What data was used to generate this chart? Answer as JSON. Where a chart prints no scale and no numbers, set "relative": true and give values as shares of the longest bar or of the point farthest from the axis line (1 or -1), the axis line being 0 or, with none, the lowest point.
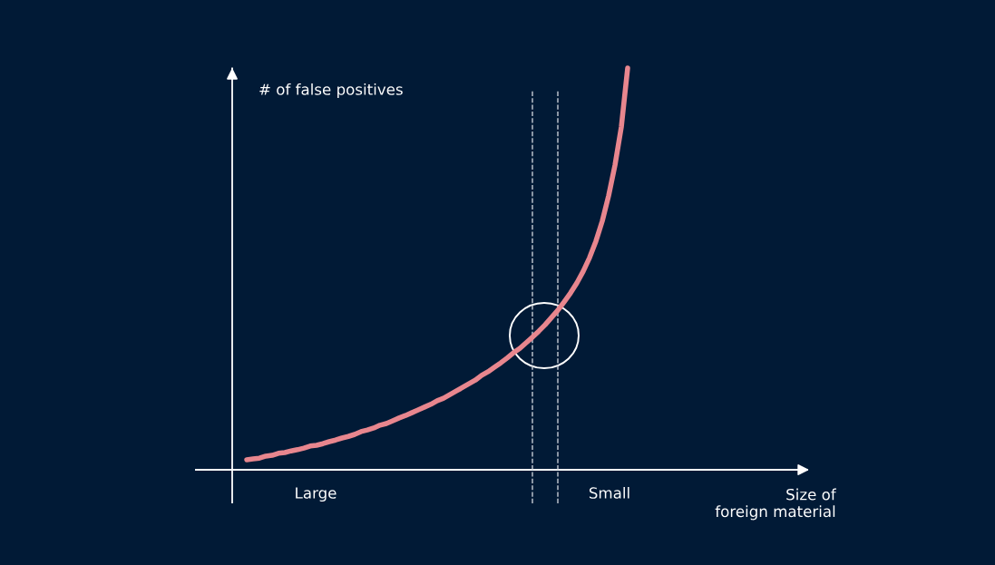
{
  "chart_data": {
    "type": "line",
    "relative": true,
    "ylabel": "# of false positives",
    "annotations": [
      "Large",
      "Small",
      "Size of\nforeign material"
    ],
    "categories": [
      null,
      null,
      null,
      null,
      null,
      null,
      null,
      null,
      null,
      null,
      null,
      null,
      null,
      null,
      null,
      null,
      null,
      null,
      null,
      null,
      null,
      null,
      null,
      null,
      null,
      null,
      null,
      null,
      null,
      null,
      null,
      null,
      null,
      null,
      null,
      null,
      null,
      null,
      null,
      null,
      null,
      null,
      null,
      null,
      null,
      null,
      null,
      null,
      null,
      null,
      null,
      null,
      null,
      null,
      null,
      null,
      null,
      null,
      null,
      null,
      null
    ],
    "series": [
      {
        "color": "#e8868e",
        "values": [
          0.025,
          0.027,
          0.029,
          0.034,
          0.036,
          0.041,
          0.043,
          0.047,
          0.05,
          0.054,
          0.059,
          0.061,
          0.065,
          0.07,
          0.074,
          0.079,
          0.083,
          0.088,
          0.095,
          0.099,
          0.104,
          0.111,
          0.115,
          0.122,
          0.129,
          0.135,
          0.142,
          0.149,
          0.156,
          0.163,
          0.172,
          0.178,
          0.187,
          0.196,
          0.205,
          0.214,
          0.223,
          0.235,
          0.244,
          0.255,
          0.266,
          0.278,
          0.291,
          0.302,
          0.316,
          0.33,
          0.345,
          0.361,
          0.379,
          0.397,
          0.418,
          0.44,
          0.465,
          0.494,
          0.528,
          0.569,
          0.619,
          0.682,
          0.758,
          0.853,
          1.0
        ]
      }
    ],
    "legend": false,
    "marker": "none",
    "line_style": "solid"
  }
}
